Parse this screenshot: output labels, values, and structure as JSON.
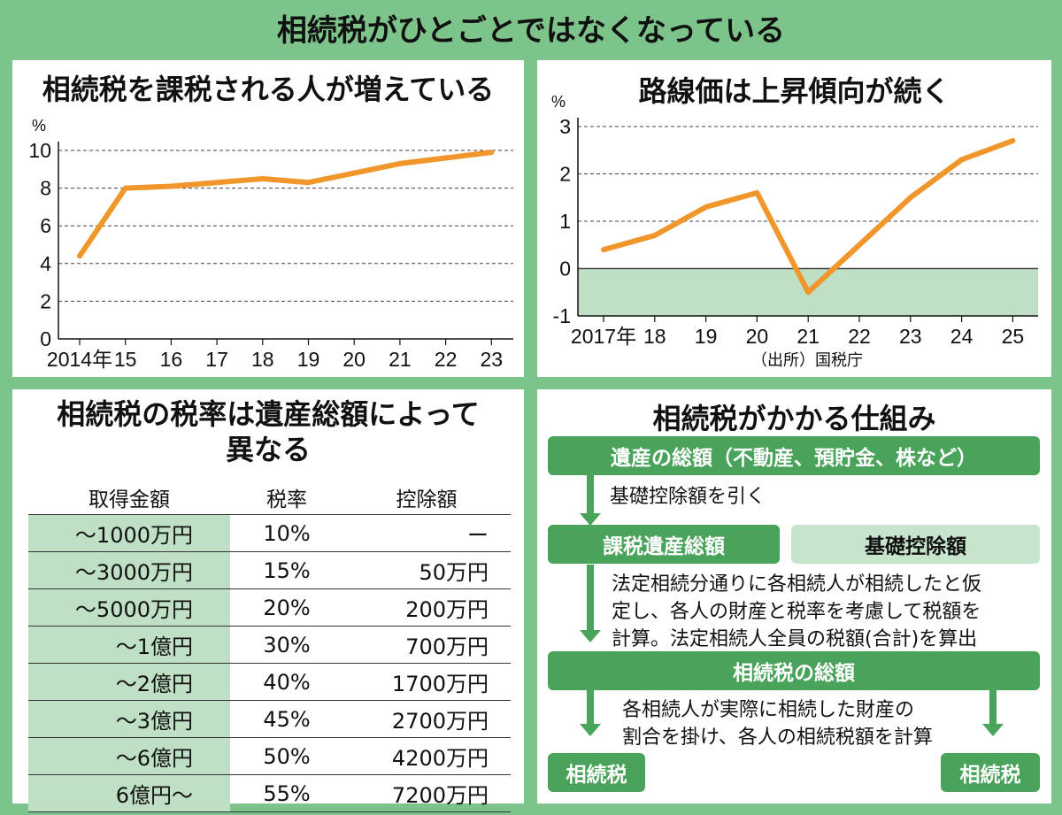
{
  "main_title": "相続税がひとごとではなくなっている",
  "chart_data": [
    {
      "type": "line",
      "title": "相続税を課税される人が増えている",
      "ylabel": "%",
      "categories": [
        "2014年",
        "15",
        "16",
        "17",
        "18",
        "19",
        "20",
        "21",
        "22",
        "23"
      ],
      "values": [
        4.4,
        8.0,
        8.1,
        8.3,
        8.5,
        8.3,
        8.8,
        9.3,
        9.6,
        9.9
      ],
      "ylim": [
        0,
        10
      ],
      "yticks": [
        "0",
        "2",
        "4",
        "6",
        "8",
        "10"
      ],
      "color": "#f0962a"
    },
    {
      "type": "line",
      "title": "路線価は上昇傾向が続く",
      "ylabel": "%",
      "categories": [
        "2017年",
        "18",
        "19",
        "20",
        "21",
        "22",
        "23",
        "24",
        "25"
      ],
      "values": [
        0.4,
        0.7,
        1.3,
        1.6,
        -0.5,
        0.5,
        1.5,
        2.3,
        2.7
      ],
      "ylim": [
        -1,
        3
      ],
      "yticks": [
        "-1",
        "0",
        "1",
        "2",
        "3"
      ],
      "source": "（出所）国税庁",
      "color": "#f0962a",
      "negative_fill": "#bfe0c4"
    }
  ],
  "table": {
    "title_line1": "相続税の税率は遺産総額によって",
    "title_line2": "異なる",
    "headers": [
      "取得金額",
      "税率",
      "控除額"
    ],
    "rows": [
      [
        "～1000万円",
        "10%",
        "ー"
      ],
      [
        "～3000万円",
        "15%",
        "50万円"
      ],
      [
        "～5000万円",
        "20%",
        "200万円"
      ],
      [
        "～1億円",
        "30%",
        "700万円"
      ],
      [
        "～2億円",
        "40%",
        "1700万円"
      ],
      [
        "～3億円",
        "45%",
        "2700万円"
      ],
      [
        "～6億円",
        "50%",
        "4200万円"
      ],
      [
        "6億円～",
        "55%",
        "7200万円"
      ]
    ]
  },
  "flow": {
    "title": "相続税がかかる仕組み",
    "box1": "遺産の総額（不動産、預貯金、株など）",
    "step1": "基礎控除額を引く",
    "box2": "課税遺産総額",
    "box2b": "基礎控除額",
    "step2_line1": "法定相続分通りに各相続人が相続したと仮",
    "step2_line2": "定し、各人の財産と税率を考慮して税額を",
    "step2_line3": "計算。法定相続人全員の税額(合計)を算出",
    "box3": "相続税の総額",
    "step3_line1": "各相続人が実際に相続した財産の",
    "step3_line2": "割合を掛け、各人の相続税額を計算",
    "box4": "相続税",
    "box5": "相続税"
  },
  "colors": {
    "background": "#7dc48b",
    "box": "#4aa35a",
    "light": "#c7e5cc",
    "line": "#f0962a"
  }
}
